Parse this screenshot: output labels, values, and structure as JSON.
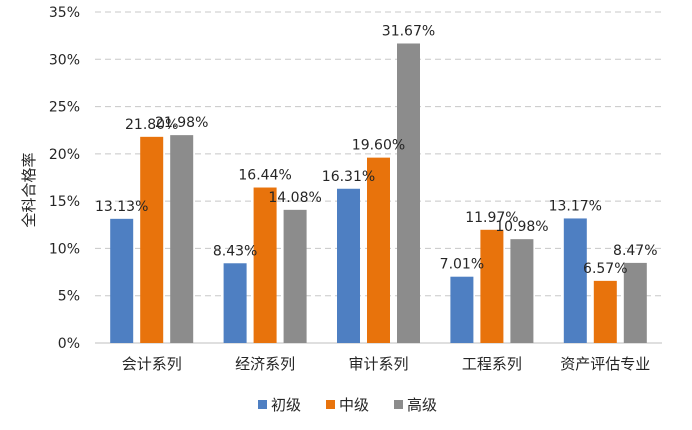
{
  "chart_data": {
    "type": "bar",
    "title": "",
    "xlabel": "",
    "ylabel": "全科合格率",
    "categories": [
      "会计系列",
      "经济系列",
      "审计系列",
      "工程系列",
      "资产评估专业"
    ],
    "series": [
      {
        "name": "初级",
        "color": "#4e7fc2",
        "values": [
          13.13,
          8.43,
          16.31,
          7.01,
          13.17
        ]
      },
      {
        "name": "中级",
        "color": "#e8730c",
        "values": [
          21.8,
          16.44,
          19.6,
          11.97,
          6.57
        ]
      },
      {
        "name": "高级",
        "color": "#8c8c8c",
        "values": [
          21.98,
          14.08,
          31.67,
          10.98,
          8.47
        ]
      }
    ],
    "data_labels": [
      [
        "13.13%",
        "8.43%",
        "16.31%",
        "7.01%",
        "13.17%"
      ],
      [
        "21.80%",
        "16.44%",
        "19.60%",
        "11.97%",
        "6.57%"
      ],
      [
        "21.98%",
        "14.08%",
        "31.67%",
        "10.98%",
        "8.47%"
      ]
    ],
    "y_ticks": [
      "0%",
      "5%",
      "10%",
      "15%",
      "20%",
      "25%",
      "30%",
      "35%"
    ],
    "ylim": [
      0,
      35
    ],
    "grid": true,
    "legend_position": "bottom"
  }
}
